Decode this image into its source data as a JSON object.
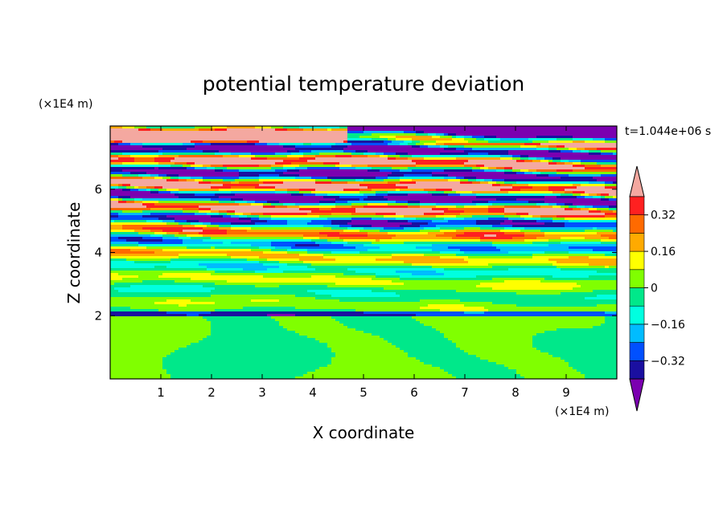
{
  "chart_data": {
    "type": "heatmap",
    "title": "potential temperature deviation",
    "xlabel": "X coordinate",
    "ylabel": "Z coordinate",
    "x_unit": "(×1E4 m)",
    "y_unit": "(×1E4 m)",
    "time_label": "t=1.044e+06 s",
    "xlim": [
      0,
      10
    ],
    "ylim": [
      0,
      8
    ],
    "x_ticks": [
      "1",
      "2",
      "3",
      "4",
      "5",
      "6",
      "7",
      "8",
      "9"
    ],
    "y_ticks": [
      "2",
      "4",
      "6"
    ],
    "colorbar": {
      "tick_labels": [
        "0.32",
        "0.16",
        "0",
        "-0.16",
        "-0.32"
      ],
      "levels": [
        -0.4,
        -0.32,
        -0.24,
        -0.16,
        -0.08,
        0,
        0.08,
        0.16,
        0.24,
        0.32,
        0.4
      ],
      "colors": [
        "#7b00b0",
        "#1a0fa0",
        "#0050ff",
        "#00bcff",
        "#00ffe0",
        "#00e88a",
        "#80ff00",
        "#ffff00",
        "#ffaa00",
        "#ff6a00",
        "#ff2020",
        "#f4a8a0"
      ]
    }
  }
}
